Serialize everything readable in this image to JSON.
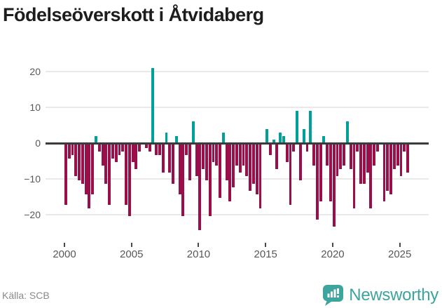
{
  "title": "Födelseöverskott i Åtvidaberg",
  "source": {
    "label": "Källa: SCB"
  },
  "brand": {
    "name": "Newsworthy"
  },
  "colors": {
    "positive_bar": "#00a09a",
    "negative_bar": "#9a0e4a",
    "zero_line": "#3b3b3b",
    "gridline": "#e9e9e9",
    "axis_text": "#575757",
    "title_text": "#1d1d1d",
    "source_text": "#8a8a8a",
    "brand_teal": "#3da49e"
  },
  "chart_data": {
    "type": "bar",
    "title": "Födelseöverskott i Åtvidaberg",
    "xlabel": "",
    "ylabel": "",
    "frequency": "quarterly",
    "start_period": "2000 Q1",
    "end_period": "2025 Q3",
    "x_tick_labels": [
      "2000",
      "2005",
      "2010",
      "2015",
      "2020",
      "2025"
    ],
    "y_tick_labels": [
      20,
      10,
      0,
      -10,
      -20
    ],
    "y_gridlines": [
      20,
      10,
      -10,
      -20
    ],
    "ylim": [
      -26,
      23
    ],
    "grid": "horizontal",
    "legend_position": "none",
    "values": [
      -17,
      -4,
      -3,
      -9,
      -10,
      -11,
      -14,
      -18,
      -14,
      2,
      -2,
      -6,
      -11,
      -17,
      -4,
      -5,
      -3,
      -2,
      -17,
      -20,
      -5,
      -7,
      -2,
      0,
      -1,
      -2,
      21,
      -3,
      -3,
      -8,
      3,
      -8,
      -11,
      2,
      -14,
      -20,
      -3,
      -10,
      6,
      -9,
      -24,
      -7,
      -10,
      -20,
      -5,
      -6,
      -15,
      3,
      -10,
      -16,
      -12,
      -6,
      -8,
      -6,
      -9,
      -13,
      -11,
      -14,
      -18,
      0,
      4,
      -3,
      1,
      -7,
      3,
      2,
      -5,
      -17,
      -2,
      9,
      -10,
      4,
      -2,
      9,
      -6,
      -21,
      -16,
      2,
      -6,
      -16,
      -23,
      -9,
      -7,
      -6,
      6,
      -7,
      -18,
      -2,
      -11,
      -11,
      -8,
      -18,
      -6,
      -2,
      0,
      -16,
      -13,
      -14,
      -7,
      -6,
      -9,
      -2,
      -8
    ]
  }
}
